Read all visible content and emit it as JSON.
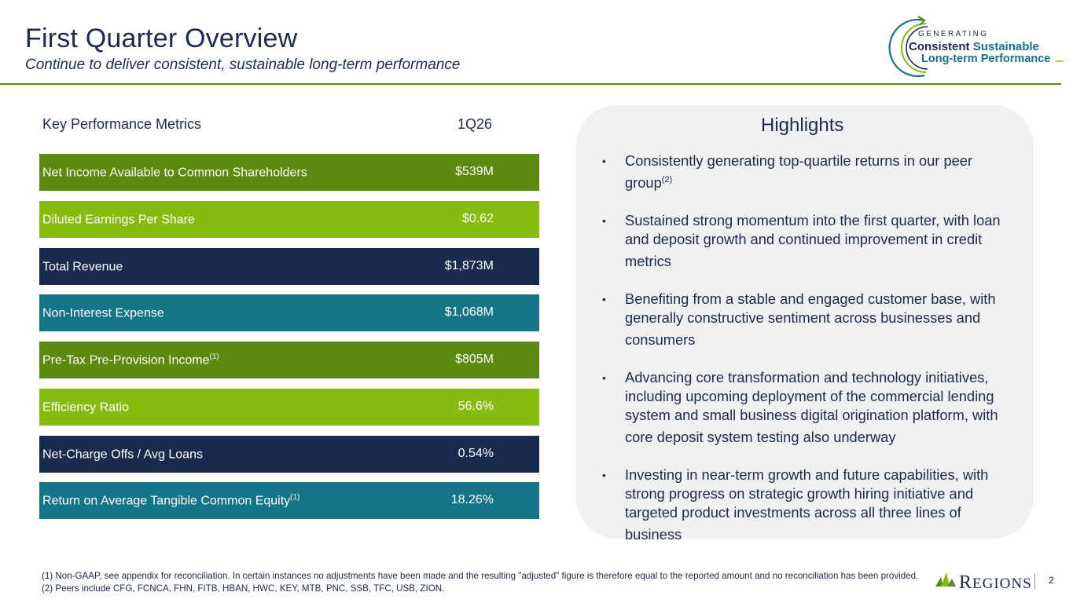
{
  "header": {
    "title": "First Quarter Overview",
    "subtitle": "Continue to deliver consistent, sustainable long-term performance"
  },
  "badge": {
    "line1": "GENERATING",
    "line2a": "Consistent",
    "line2b": "Sustainable",
    "line3": "Long-term Performance",
    "icon": "circular-arrow-icon"
  },
  "metrics": {
    "header_label": "Key Performance Metrics",
    "header_period": "1Q26",
    "rows": [
      {
        "label": "Net Income Available to Common Shareholders",
        "note": "",
        "value": "$539M",
        "color": "#5a8a0f"
      },
      {
        "label": "Diluted Earnings Per Share",
        "note": "",
        "value": "$0.62",
        "color": "#86bc0f"
      },
      {
        "label": "Total Revenue",
        "note": "",
        "value": "$1,873M",
        "color": "#182b4d"
      },
      {
        "label": "Non-Interest Expense",
        "note": "",
        "value": "$1,068M",
        "color": "#147587"
      },
      {
        "label": "Pre-Tax Pre-Provision Income",
        "note": "(1)",
        "value": "$805M",
        "color": "#5a8a0f"
      },
      {
        "label": "Efficiency Ratio",
        "note": "",
        "value": "56.6%",
        "color": "#86bc0f"
      },
      {
        "label": "Net-Charge Offs / Avg Loans",
        "note": "",
        "value": "0.54%",
        "color": "#182b4d"
      },
      {
        "label": "Return on Average Tangible Common Equity",
        "note": "(1)",
        "value": "18.26%",
        "color": "#147587"
      }
    ]
  },
  "highlights": {
    "title": "Highlights",
    "items": [
      {
        "text": "Consistently generating top-quartile returns in our peer group",
        "note": "(2)"
      },
      {
        "text": "Sustained strong momentum into the first quarter, with loan and deposit growth and continued improvement in credit metrics",
        "note": ""
      },
      {
        "text": "Benefiting from a stable and engaged customer base, with generally constructive sentiment across businesses and consumers",
        "note": ""
      },
      {
        "text": "Advancing core transformation and technology initiatives, including upcoming deployment of the commercial lending system and small business digital origination platform, with core deposit system testing also underway",
        "note": ""
      },
      {
        "text": "Investing in near-term growth and future capabilities, with strong progress on strategic growth hiring initiative and targeted product investments across all three lines of business",
        "note": ""
      }
    ]
  },
  "footer": {
    "footnote": "(1) Non-GAAP, see appendix for reconciliation. In certain instances no adjustments have been made and the resulting \"adjusted\" figure is therefore equal to the reported amount and no reconciliation has been provided. (2) Peers include CFG, FCNCA, FHN, FITB, HBAN, HWC, KEY, MTB, PNC, SSB, TFC, USB, ZION.",
    "brand_initial": "R",
    "brand_rest": "EGIONS",
    "page_number": "2"
  },
  "colors": {
    "navy": "#1b2a4e",
    "green_dark": "#5a8a0f",
    "green_light": "#86bc0f",
    "teal": "#147587",
    "panel_bg": "#f1f1f1"
  }
}
